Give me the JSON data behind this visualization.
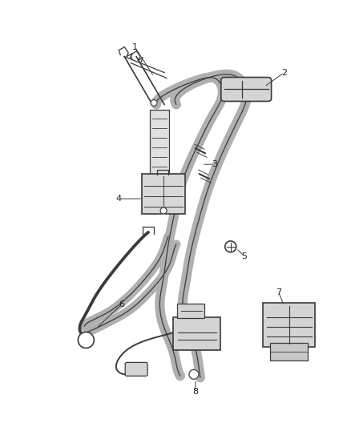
{
  "background_color": "#ffffff",
  "line_color": "#3a3a3a",
  "label_color": "#222222",
  "figsize": [
    4.38,
    5.33
  ],
  "dpi": 100,
  "belt_color": "#b0b0b0",
  "belt_edge": "#3a3a3a",
  "part_fill": "#d4d4d4",
  "part_edge": "#3a3a3a"
}
